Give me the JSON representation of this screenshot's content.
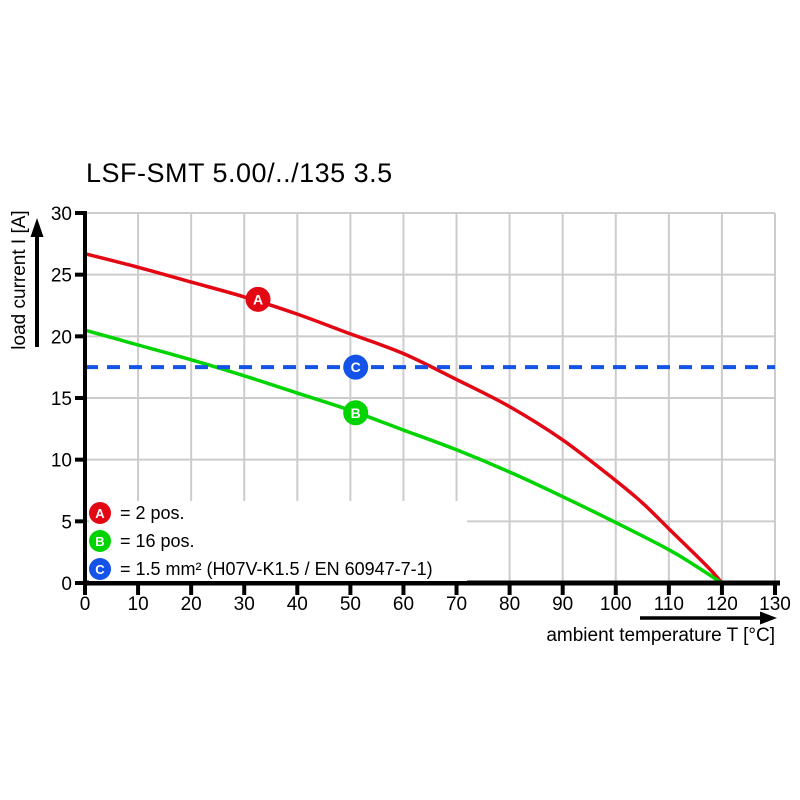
{
  "chart_data": {
    "type": "line",
    "title": "LSF-SMT 5.00/../135 3.5",
    "xlabel": "ambient temperature T [°C]",
    "ylabel": "load current I [A]",
    "xlim": [
      0,
      130
    ],
    "ylim": [
      0,
      30
    ],
    "x_ticks": [
      0,
      10,
      20,
      30,
      40,
      50,
      60,
      70,
      80,
      90,
      100,
      110,
      120,
      130
    ],
    "y_ticks": [
      0,
      5,
      10,
      15,
      20,
      25,
      30
    ],
    "grid": true,
    "colors": {
      "axis": "#000000",
      "grid": "#cccccc",
      "red": "#e30613",
      "green": "#00d400",
      "blue": "#1353e8"
    },
    "series": [
      {
        "name": "A",
        "color": "#e30613",
        "style": "solid",
        "points": [
          [
            0,
            26.7
          ],
          [
            10,
            25.6
          ],
          [
            20,
            24.4
          ],
          [
            30,
            23.2
          ],
          [
            40,
            21.8
          ],
          [
            50,
            20.2
          ],
          [
            60,
            18.6
          ],
          [
            70,
            16.5
          ],
          [
            80,
            14.3
          ],
          [
            90,
            11.6
          ],
          [
            100,
            8.3
          ],
          [
            105,
            6.5
          ],
          [
            110,
            4.4
          ],
          [
            115,
            2.3
          ],
          [
            118,
            1.0
          ],
          [
            120,
            0
          ]
        ],
        "marker": {
          "x": 32.6,
          "y": 23.0,
          "label": "A"
        }
      },
      {
        "name": "B",
        "color": "#00d400",
        "style": "solid",
        "points": [
          [
            0,
            20.5
          ],
          [
            10,
            19.3
          ],
          [
            20,
            18.1
          ],
          [
            30,
            16.8
          ],
          [
            40,
            15.4
          ],
          [
            50,
            14.0
          ],
          [
            60,
            12.4
          ],
          [
            70,
            10.8
          ],
          [
            80,
            9.0
          ],
          [
            90,
            7.0
          ],
          [
            100,
            4.9
          ],
          [
            110,
            2.7
          ],
          [
            115,
            1.4
          ],
          [
            120,
            0
          ]
        ],
        "marker": {
          "x": 51,
          "y": 13.8,
          "label": "B"
        }
      },
      {
        "name": "C",
        "color": "#1353e8",
        "style": "dashed",
        "points": [
          [
            0,
            17.5
          ],
          [
            130,
            17.5
          ]
        ],
        "marker": {
          "x": 51,
          "y": 17.5,
          "label": "C"
        }
      }
    ],
    "legend": {
      "position": "bottom-left",
      "items": [
        {
          "key": "A",
          "color": "#e30613",
          "label": "= 2 pos."
        },
        {
          "key": "B",
          "color": "#00d400",
          "label": "= 16 pos."
        },
        {
          "key": "C",
          "color": "#1353e8",
          "label": "= 1.5 mm² (H07V-K1.5 / EN 60947-7-1)"
        }
      ]
    }
  }
}
